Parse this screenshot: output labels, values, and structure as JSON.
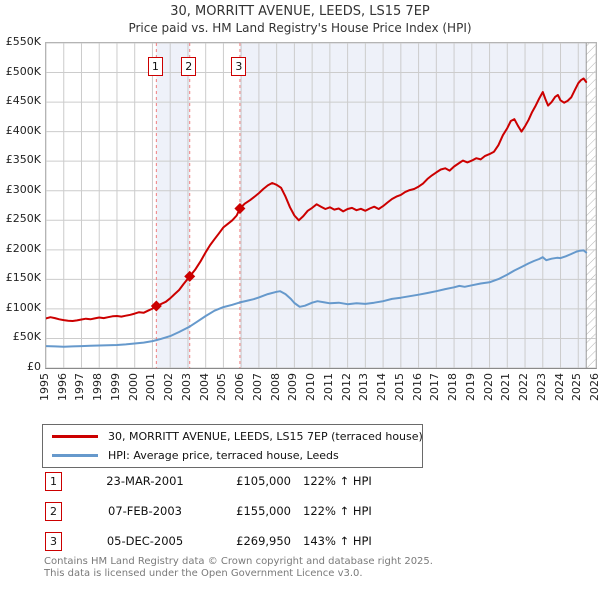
{
  "title": "30, MORRITT AVENUE, LEEDS, LS15 7EP",
  "subtitle": "Price paid vs. HM Land Registry's House Price Index (HPI)",
  "chart_data": {
    "type": "line",
    "x_range": [
      1995,
      2026
    ],
    "y_range": [
      0,
      550000
    ],
    "x_ticks": [
      1995,
      1996,
      1997,
      1998,
      1999,
      2000,
      2001,
      2002,
      2003,
      2004,
      2005,
      2006,
      2007,
      2008,
      2009,
      2010,
      2011,
      2012,
      2013,
      2014,
      2015,
      2016,
      2017,
      2018,
      2019,
      2020,
      2021,
      2022,
      2023,
      2024,
      2025,
      2026
    ],
    "y_ticks": [
      {
        "label": "£0",
        "value": 0
      },
      {
        "label": "£50K",
        "value": 50000
      },
      {
        "label": "£100K",
        "value": 100000
      },
      {
        "label": "£150K",
        "value": 150000
      },
      {
        "label": "£200K",
        "value": 200000
      },
      {
        "label": "£250K",
        "value": 250000
      },
      {
        "label": "£300K",
        "value": 300000
      },
      {
        "label": "£350K",
        "value": 350000
      },
      {
        "label": "£400K",
        "value": 400000
      },
      {
        "label": "£450K",
        "value": 450000
      },
      {
        "label": "£500K",
        "value": 500000
      },
      {
        "label": "£550K",
        "value": 550000
      }
    ],
    "grid": true,
    "legend_position": "below",
    "shaded_bands": [
      [
        2001.22,
        2003.1
      ],
      [
        2005.93,
        2025.45
      ]
    ],
    "hatch_start": 2025.45,
    "colors": {
      "property_line": "#cc0000",
      "hpi_line": "#6699cc",
      "band": "#eef1f9",
      "grid": "#cccccc",
      "sale_dash": "#f08080",
      "hatch": "#b5b5b5"
    },
    "sale_markers": [
      {
        "label": "1",
        "x": 2001.22,
        "y": 105000
      },
      {
        "label": "2",
        "x": 2003.1,
        "y": 155000
      },
      {
        "label": "3",
        "x": 2005.93,
        "y": 269950
      }
    ],
    "series": [
      {
        "name": "30, MORRITT AVENUE, LEEDS, LS15 7EP (terraced house)",
        "color": "#cc0000",
        "points": [
          [
            1995.0,
            84000
          ],
          [
            1995.25,
            86000
          ],
          [
            1995.5,
            84500
          ],
          [
            1995.75,
            82500
          ],
          [
            1996.0,
            81000
          ],
          [
            1996.25,
            80000
          ],
          [
            1996.5,
            79500
          ],
          [
            1996.75,
            80500
          ],
          [
            1997.0,
            82000
          ],
          [
            1997.25,
            83500
          ],
          [
            1997.5,
            82500
          ],
          [
            1997.75,
            84000
          ],
          [
            1998.0,
            85500
          ],
          [
            1998.25,
            84500
          ],
          [
            1998.5,
            86000
          ],
          [
            1998.75,
            87500
          ],
          [
            1999.0,
            88000
          ],
          [
            1999.25,
            87000
          ],
          [
            1999.5,
            88500
          ],
          [
            1999.75,
            90000
          ],
          [
            2000.0,
            92000
          ],
          [
            2000.25,
            94500
          ],
          [
            2000.5,
            93500
          ],
          [
            2000.75,
            97000
          ],
          [
            2001.0,
            100500
          ],
          [
            2001.22,
            105000
          ],
          [
            2001.5,
            108500
          ],
          [
            2001.75,
            112000
          ],
          [
            2002.0,
            118000
          ],
          [
            2002.25,
            125000
          ],
          [
            2002.5,
            132000
          ],
          [
            2002.75,
            142000
          ],
          [
            2003.1,
            155000
          ],
          [
            2003.4,
            166000
          ],
          [
            2003.7,
            180000
          ],
          [
            2004.0,
            196000
          ],
          [
            2004.25,
            208000
          ],
          [
            2004.5,
            218000
          ],
          [
            2004.75,
            228000
          ],
          [
            2005.0,
            238000
          ],
          [
            2005.25,
            244000
          ],
          [
            2005.5,
            250000
          ],
          [
            2005.75,
            258000
          ],
          [
            2005.93,
            269950
          ],
          [
            2006.2,
            278000
          ],
          [
            2006.5,
            284000
          ],
          [
            2006.8,
            291000
          ],
          [
            2007.0,
            296000
          ],
          [
            2007.25,
            303000
          ],
          [
            2007.5,
            309000
          ],
          [
            2007.75,
            313000
          ],
          [
            2008.0,
            310000
          ],
          [
            2008.25,
            305000
          ],
          [
            2008.5,
            290000
          ],
          [
            2008.75,
            272000
          ],
          [
            2009.0,
            258000
          ],
          [
            2009.25,
            250000
          ],
          [
            2009.5,
            257000
          ],
          [
            2009.75,
            266000
          ],
          [
            2010.0,
            271000
          ],
          [
            2010.25,
            277000
          ],
          [
            2010.5,
            273000
          ],
          [
            2010.75,
            269000
          ],
          [
            2011.0,
            272000
          ],
          [
            2011.25,
            268000
          ],
          [
            2011.5,
            270000
          ],
          [
            2011.75,
            265000
          ],
          [
            2012.0,
            269000
          ],
          [
            2012.25,
            271000
          ],
          [
            2012.5,
            267000
          ],
          [
            2012.75,
            269500
          ],
          [
            2013.0,
            266000
          ],
          [
            2013.25,
            270000
          ],
          [
            2013.5,
            273000
          ],
          [
            2013.75,
            269000
          ],
          [
            2014.0,
            274000
          ],
          [
            2014.25,
            280000
          ],
          [
            2014.5,
            286000
          ],
          [
            2014.75,
            290000
          ],
          [
            2015.0,
            293000
          ],
          [
            2015.25,
            298000
          ],
          [
            2015.5,
            301000
          ],
          [
            2015.75,
            303000
          ],
          [
            2016.0,
            307000
          ],
          [
            2016.25,
            312000
          ],
          [
            2016.5,
            320000
          ],
          [
            2016.75,
            326000
          ],
          [
            2017.0,
            331000
          ],
          [
            2017.25,
            336000
          ],
          [
            2017.5,
            338000
          ],
          [
            2017.75,
            334000
          ],
          [
            2018.0,
            341000
          ],
          [
            2018.25,
            346000
          ],
          [
            2018.5,
            351000
          ],
          [
            2018.75,
            348000
          ],
          [
            2019.0,
            351000
          ],
          [
            2019.25,
            355000
          ],
          [
            2019.5,
            353000
          ],
          [
            2019.75,
            359000
          ],
          [
            2020.0,
            362000
          ],
          [
            2020.25,
            366000
          ],
          [
            2020.5,
            377000
          ],
          [
            2020.75,
            394000
          ],
          [
            2021.0,
            406000
          ],
          [
            2021.2,
            418000
          ],
          [
            2021.4,
            421000
          ],
          [
            2021.6,
            410000
          ],
          [
            2021.8,
            400000
          ],
          [
            2022.0,
            409000
          ],
          [
            2022.2,
            420000
          ],
          [
            2022.4,
            433000
          ],
          [
            2022.6,
            444000
          ],
          [
            2022.8,
            456000
          ],
          [
            2023.0,
            467000
          ],
          [
            2023.15,
            455000
          ],
          [
            2023.3,
            444000
          ],
          [
            2023.5,
            450000
          ],
          [
            2023.7,
            459000
          ],
          [
            2023.85,
            462000
          ],
          [
            2024.0,
            453000
          ],
          [
            2024.2,
            449000
          ],
          [
            2024.4,
            452000
          ],
          [
            2024.6,
            458000
          ],
          [
            2024.8,
            470000
          ],
          [
            2025.0,
            482000
          ],
          [
            2025.15,
            487000
          ],
          [
            2025.3,
            490000
          ],
          [
            2025.45,
            484000
          ]
        ]
      },
      {
        "name": "HPI: Average price, terraced house, Leeds",
        "color": "#6699cc",
        "points": [
          [
            1995.0,
            37000
          ],
          [
            1995.5,
            36500
          ],
          [
            1996.0,
            36000
          ],
          [
            1996.5,
            36500
          ],
          [
            1997.0,
            37000
          ],
          [
            1997.5,
            37500
          ],
          [
            1998.0,
            38000
          ],
          [
            1998.5,
            38500
          ],
          [
            1999.0,
            39000
          ],
          [
            1999.5,
            40000
          ],
          [
            2000.0,
            41500
          ],
          [
            2000.5,
            43000
          ],
          [
            2001.0,
            45500
          ],
          [
            2001.22,
            47300
          ],
          [
            2001.5,
            49500
          ],
          [
            2002.0,
            54000
          ],
          [
            2002.5,
            61000
          ],
          [
            2003.1,
            70000
          ],
          [
            2003.5,
            78000
          ],
          [
            2004.0,
            88000
          ],
          [
            2004.5,
            97000
          ],
          [
            2005.0,
            103000
          ],
          [
            2005.5,
            107000
          ],
          [
            2005.93,
            111000
          ],
          [
            2006.3,
            113500
          ],
          [
            2006.7,
            116500
          ],
          [
            2007.0,
            119500
          ],
          [
            2007.5,
            125000
          ],
          [
            2008.0,
            129000
          ],
          [
            2008.2,
            130000
          ],
          [
            2008.5,
            125000
          ],
          [
            2008.8,
            117000
          ],
          [
            2009.0,
            110000
          ],
          [
            2009.3,
            103500
          ],
          [
            2009.6,
            105500
          ],
          [
            2010.0,
            110500
          ],
          [
            2010.3,
            113000
          ],
          [
            2010.7,
            111000
          ],
          [
            2011.0,
            109500
          ],
          [
            2011.5,
            110500
          ],
          [
            2012.0,
            108000
          ],
          [
            2012.5,
            109500
          ],
          [
            2013.0,
            108500
          ],
          [
            2013.5,
            110500
          ],
          [
            2014.0,
            113000
          ],
          [
            2014.5,
            117000
          ],
          [
            2015.0,
            119000
          ],
          [
            2015.5,
            121500
          ],
          [
            2016.0,
            124000
          ],
          [
            2016.5,
            127000
          ],
          [
            2017.0,
            130000
          ],
          [
            2017.5,
            133500
          ],
          [
            2018.0,
            136500
          ],
          [
            2018.3,
            139000
          ],
          [
            2018.6,
            137500
          ],
          [
            2019.0,
            140000
          ],
          [
            2019.5,
            143000
          ],
          [
            2020.0,
            145000
          ],
          [
            2020.5,
            150500
          ],
          [
            2021.0,
            158000
          ],
          [
            2021.4,
            165000
          ],
          [
            2021.8,
            171000
          ],
          [
            2022.2,
            177000
          ],
          [
            2022.5,
            181000
          ],
          [
            2022.8,
            184500
          ],
          [
            2023.0,
            187500
          ],
          [
            2023.2,
            182500
          ],
          [
            2023.5,
            185000
          ],
          [
            2023.8,
            186500
          ],
          [
            2024.0,
            186000
          ],
          [
            2024.3,
            189000
          ],
          [
            2024.6,
            193000
          ],
          [
            2024.9,
            197000
          ],
          [
            2025.1,
            198500
          ],
          [
            2025.3,
            199000
          ],
          [
            2025.45,
            195500
          ]
        ]
      }
    ]
  },
  "legend": {
    "items": [
      {
        "label": "30, MORRITT AVENUE, LEEDS, LS15 7EP (terraced house)",
        "color": "#cc0000"
      },
      {
        "label": "HPI: Average price, terraced house, Leeds",
        "color": "#6699cc"
      }
    ]
  },
  "sales_table": {
    "rows": [
      {
        "num": "1",
        "date": "23-MAR-2001",
        "price": "£105,000",
        "hpi": "122% ↑ HPI"
      },
      {
        "num": "2",
        "date": "07-FEB-2003",
        "price": "£155,000",
        "hpi": "122% ↑ HPI"
      },
      {
        "num": "3",
        "date": "05-DEC-2005",
        "price": "£269,950",
        "hpi": "143% ↑ HPI"
      }
    ]
  },
  "footer": {
    "line1": "Contains HM Land Registry data © Crown copyright and database right 2025.",
    "line2": "This data is licensed under the Open Government Licence v3.0."
  }
}
